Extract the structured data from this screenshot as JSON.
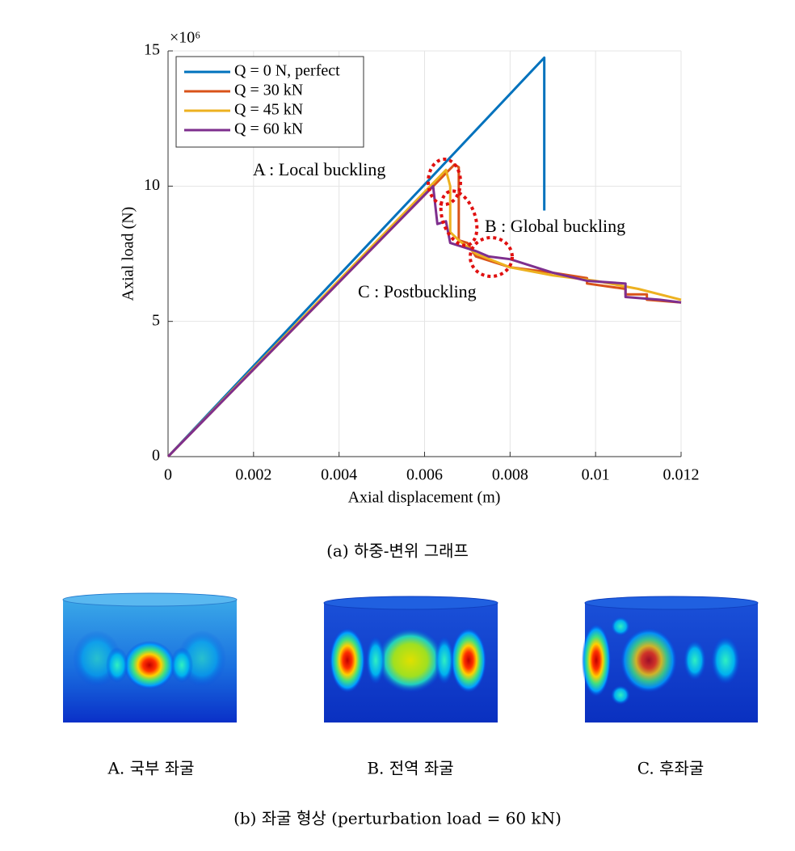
{
  "chart_data": {
    "type": "line",
    "y_multiplier": "×10⁶",
    "xlabel": "Axial displacement (m)",
    "ylabel": "Axial load (N)",
    "xlim": [
      0,
      0.012
    ],
    "ylim": [
      0,
      15
    ],
    "xticks": [
      0,
      0.002,
      0.004,
      0.006,
      0.008,
      0.01,
      0.012
    ],
    "yticks": [
      0,
      5,
      10,
      15
    ],
    "grid": true,
    "legend": "upper left",
    "series": [
      {
        "name": "Q = 0 N, perfect",
        "color": "#0072bd",
        "x": [
          0,
          0.0088,
          0.0088
        ],
        "values": [
          0,
          14.75,
          9.1
        ]
      },
      {
        "name": "Q = 30 kN",
        "color": "#d95319",
        "x": [
          0,
          0.0067,
          0.0068,
          0.0068,
          0.007,
          0.0072,
          0.008,
          0.009,
          0.0098,
          0.0098,
          0.0107,
          0.0107,
          0.0112,
          0.0112,
          0.012
        ],
        "values": [
          0,
          10.8,
          10.7,
          8.0,
          7.9,
          7.4,
          7.0,
          6.8,
          6.6,
          6.4,
          6.2,
          6.0,
          6.0,
          5.8,
          5.7
        ]
      },
      {
        "name": "Q = 45 kN",
        "color": "#edb120",
        "x": [
          0,
          0.0065,
          0.0066,
          0.0066,
          0.0068,
          0.0072,
          0.008,
          0.009,
          0.01,
          0.011,
          0.012
        ],
        "values": [
          0,
          10.6,
          10.0,
          8.3,
          8.0,
          7.5,
          7.0,
          6.7,
          6.5,
          6.2,
          5.8
        ]
      },
      {
        "name": "Q = 60 kN",
        "color": "#7e2f8e",
        "x": [
          0,
          0.0062,
          0.0063,
          0.0065,
          0.0066,
          0.0072,
          0.0075,
          0.008,
          0.009,
          0.0098,
          0.0107,
          0.0107,
          0.0115,
          0.012
        ],
        "values": [
          0,
          10.0,
          8.6,
          8.7,
          7.9,
          7.6,
          7.4,
          7.3,
          6.8,
          6.5,
          6.4,
          5.9,
          5.8,
          5.7
        ]
      }
    ],
    "annotations": [
      "A : Local buckling",
      "B : Global buckling",
      "C : Postbuckling"
    ]
  },
  "figure": {
    "caption_a": "(a) 하중-변위 그래프",
    "panels": [
      "A. 국부 좌굴",
      "B. 전역 좌굴",
      "C. 후좌굴"
    ],
    "caption_b": "(b) 좌굴 형상 (perturbation load = 60 kN)"
  }
}
